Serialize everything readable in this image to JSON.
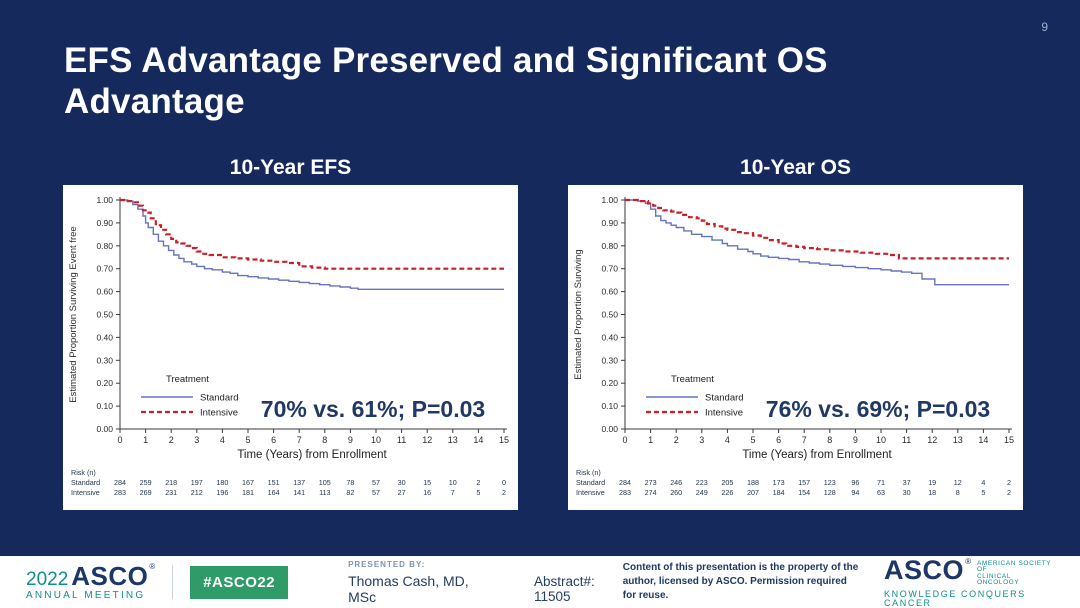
{
  "slide": {
    "page_number": "9",
    "title": "EFS Advantage Preserved and Significant OS Advantage",
    "background_color": "#16295C",
    "title_color": "#FFFFFF",
    "annotation_color": "#1F3864"
  },
  "chart_data": [
    {
      "type": "line",
      "subtype": "kaplan-meier-step",
      "title": "10-Year EFS",
      "xlabel": "Time (Years) from Enrollment",
      "ylabel": "Estimated Proportion Surviving Event free",
      "xlim": [
        0,
        15
      ],
      "ylim": [
        0.0,
        1.0
      ],
      "grid": false,
      "xticks": [
        0,
        1,
        2,
        3,
        4,
        5,
        6,
        7,
        8,
        9,
        10,
        11,
        12,
        13,
        14,
        15
      ],
      "yticks": [
        "0.00",
        "0.10",
        "0.20",
        "0.30",
        "0.40",
        "0.50",
        "0.60",
        "0.70",
        "0.80",
        "0.90",
        "1.00"
      ],
      "legend_title": "Treatment",
      "legend_position": "lower-left",
      "annotation": "70% vs. 61%; P=0.03",
      "series": [
        {
          "name": "Standard",
          "color": "#6673BF",
          "dash": "solid",
          "points": [
            [
              0,
              1.0
            ],
            [
              0.3,
              0.995
            ],
            [
              0.5,
              0.98
            ],
            [
              0.7,
              0.96
            ],
            [
              0.9,
              0.93
            ],
            [
              1.0,
              0.9
            ],
            [
              1.1,
              0.88
            ],
            [
              1.3,
              0.85
            ],
            [
              1.5,
              0.82
            ],
            [
              1.7,
              0.8
            ],
            [
              1.9,
              0.78
            ],
            [
              2.1,
              0.76
            ],
            [
              2.3,
              0.745
            ],
            [
              2.5,
              0.73
            ],
            [
              2.8,
              0.72
            ],
            [
              3.0,
              0.71
            ],
            [
              3.3,
              0.7
            ],
            [
              3.6,
              0.695
            ],
            [
              4.0,
              0.685
            ],
            [
              4.3,
              0.68
            ],
            [
              4.6,
              0.67
            ],
            [
              5.0,
              0.665
            ],
            [
              5.4,
              0.66
            ],
            [
              5.8,
              0.655
            ],
            [
              6.2,
              0.65
            ],
            [
              6.6,
              0.645
            ],
            [
              7.0,
              0.64
            ],
            [
              7.4,
              0.635
            ],
            [
              7.8,
              0.63
            ],
            [
              8.2,
              0.625
            ],
            [
              8.6,
              0.62
            ],
            [
              9.0,
              0.615
            ],
            [
              9.3,
              0.61
            ],
            [
              15,
              0.61
            ]
          ]
        },
        {
          "name": "Intensive",
          "color": "#C8202A",
          "dash": "dashed",
          "points": [
            [
              0,
              1.0
            ],
            [
              0.3,
              0.995
            ],
            [
              0.5,
              0.99
            ],
            [
              0.7,
              0.975
            ],
            [
              0.9,
              0.955
            ],
            [
              1.0,
              0.945
            ],
            [
              1.2,
              0.92
            ],
            [
              1.4,
              0.89
            ],
            [
              1.6,
              0.87
            ],
            [
              1.8,
              0.85
            ],
            [
              2.0,
              0.83
            ],
            [
              2.2,
              0.815
            ],
            [
              2.4,
              0.81
            ],
            [
              2.6,
              0.8
            ],
            [
              2.8,
              0.79
            ],
            [
              3.0,
              0.775
            ],
            [
              3.2,
              0.765
            ],
            [
              3.5,
              0.76
            ],
            [
              4.0,
              0.75
            ],
            [
              4.5,
              0.745
            ],
            [
              5.0,
              0.74
            ],
            [
              5.5,
              0.735
            ],
            [
              6.0,
              0.73
            ],
            [
              6.5,
              0.725
            ],
            [
              7.0,
              0.71
            ],
            [
              7.5,
              0.705
            ],
            [
              8.0,
              0.7
            ],
            [
              15,
              0.7
            ]
          ]
        }
      ],
      "risk_table": {
        "label": "Risk (n)",
        "rows": [
          {
            "name": "Standard",
            "values": [
              284,
              259,
              218,
              197,
              180,
              167,
              151,
              137,
              105,
              78,
              57,
              30,
              15,
              10,
              2,
              0
            ]
          },
          {
            "name": "Intensive",
            "values": [
              283,
              269,
              231,
              212,
              196,
              181,
              164,
              141,
              113,
              82,
              57,
              27,
              16,
              7,
              5,
              2
            ]
          }
        ]
      }
    },
    {
      "type": "line",
      "subtype": "kaplan-meier-step",
      "title": "10-Year OS",
      "xlabel": "Time (Years) from Enrollment",
      "ylabel": "Estimated Proportion Surviving",
      "xlim": [
        0,
        15
      ],
      "ylim": [
        0.0,
        1.0
      ],
      "grid": false,
      "xticks": [
        0,
        1,
        2,
        3,
        4,
        5,
        6,
        7,
        8,
        9,
        10,
        11,
        12,
        13,
        14,
        15
      ],
      "yticks": [
        "0.00",
        "0.10",
        "0.20",
        "0.30",
        "0.40",
        "0.50",
        "0.60",
        "0.70",
        "0.80",
        "0.90",
        "1.00"
      ],
      "legend_title": "Treatment",
      "legend_position": "lower-left",
      "annotation": "76% vs. 69%; P=0.03",
      "series": [
        {
          "name": "Standard",
          "color": "#6673BF",
          "dash": "solid",
          "points": [
            [
              0,
              1.0
            ],
            [
              0.5,
              0.995
            ],
            [
              0.8,
              0.985
            ],
            [
              1.0,
              0.96
            ],
            [
              1.2,
              0.93
            ],
            [
              1.4,
              0.91
            ],
            [
              1.6,
              0.9
            ],
            [
              1.8,
              0.89
            ],
            [
              2.0,
              0.88
            ],
            [
              2.3,
              0.865
            ],
            [
              2.6,
              0.85
            ],
            [
              3.0,
              0.84
            ],
            [
              3.4,
              0.825
            ],
            [
              3.8,
              0.81
            ],
            [
              4.0,
              0.8
            ],
            [
              4.4,
              0.785
            ],
            [
              4.8,
              0.775
            ],
            [
              5.0,
              0.765
            ],
            [
              5.3,
              0.755
            ],
            [
              5.6,
              0.75
            ],
            [
              6.0,
              0.745
            ],
            [
              6.4,
              0.74
            ],
            [
              6.8,
              0.73
            ],
            [
              7.2,
              0.725
            ],
            [
              7.6,
              0.72
            ],
            [
              8.0,
              0.715
            ],
            [
              8.5,
              0.71
            ],
            [
              9.0,
              0.705
            ],
            [
              9.5,
              0.7
            ],
            [
              10.0,
              0.695
            ],
            [
              10.4,
              0.69
            ],
            [
              10.8,
              0.685
            ],
            [
              11.2,
              0.68
            ],
            [
              11.6,
              0.655
            ],
            [
              12.1,
              0.63
            ],
            [
              15,
              0.63
            ]
          ]
        },
        {
          "name": "Intensive",
          "color": "#C8202A",
          "dash": "dashed",
          "points": [
            [
              0,
              1.0
            ],
            [
              0.5,
              0.995
            ],
            [
              0.9,
              0.985
            ],
            [
              1.1,
              0.975
            ],
            [
              1.3,
              0.965
            ],
            [
              1.5,
              0.955
            ],
            [
              1.8,
              0.95
            ],
            [
              2.0,
              0.945
            ],
            [
              2.2,
              0.935
            ],
            [
              2.5,
              0.925
            ],
            [
              2.8,
              0.92
            ],
            [
              3.0,
              0.91
            ],
            [
              3.2,
              0.895
            ],
            [
              3.5,
              0.885
            ],
            [
              3.8,
              0.875
            ],
            [
              4.0,
              0.87
            ],
            [
              4.3,
              0.86
            ],
            [
              4.6,
              0.855
            ],
            [
              5.0,
              0.845
            ],
            [
              5.3,
              0.835
            ],
            [
              5.6,
              0.825
            ],
            [
              6.0,
              0.81
            ],
            [
              6.3,
              0.8
            ],
            [
              6.7,
              0.795
            ],
            [
              7.0,
              0.79
            ],
            [
              7.5,
              0.785
            ],
            [
              8.0,
              0.78
            ],
            [
              8.5,
              0.775
            ],
            [
              9.2,
              0.77
            ],
            [
              9.8,
              0.765
            ],
            [
              10.3,
              0.76
            ],
            [
              10.7,
              0.745
            ],
            [
              15,
              0.745
            ]
          ]
        }
      ],
      "risk_table": {
        "label": "Risk (n)",
        "rows": [
          {
            "name": "Standard",
            "values": [
              284,
              273,
              246,
              223,
              205,
              188,
              173,
              157,
              123,
              96,
              71,
              37,
              19,
              12,
              4,
              2
            ]
          },
          {
            "name": "Intensive",
            "values": [
              283,
              274,
              260,
              249,
              226,
              207,
              184,
              154,
              128,
              94,
              63,
              30,
              18,
              8,
              5,
              2
            ]
          }
        ]
      }
    }
  ],
  "footer": {
    "meeting": {
      "year": "2022",
      "name": "ASCO",
      "reg": "®",
      "sub": "ANNUAL MEETING"
    },
    "hashtag": "#ASCO22",
    "hashtag_color": "#2E9B68",
    "presented_label": "PRESENTED BY:",
    "presenter": "Thomas Cash, MD, MSc",
    "abstract": "Abstract#: 11505",
    "notice_line1": "Content of this presentation is the property of the",
    "notice_line2": "author, licensed by ASCO. Permission required for reuse.",
    "asco_logo": {
      "name": "ASCO",
      "reg": "®",
      "society_line1": "AMERICAN SOCIETY OF",
      "society_line2": "CLINICAL ONCOLOGY",
      "tagline": "KNOWLEDGE CONQUERS CANCER",
      "teal": "#0F8E8C",
      "navy": "#1C3667"
    }
  }
}
